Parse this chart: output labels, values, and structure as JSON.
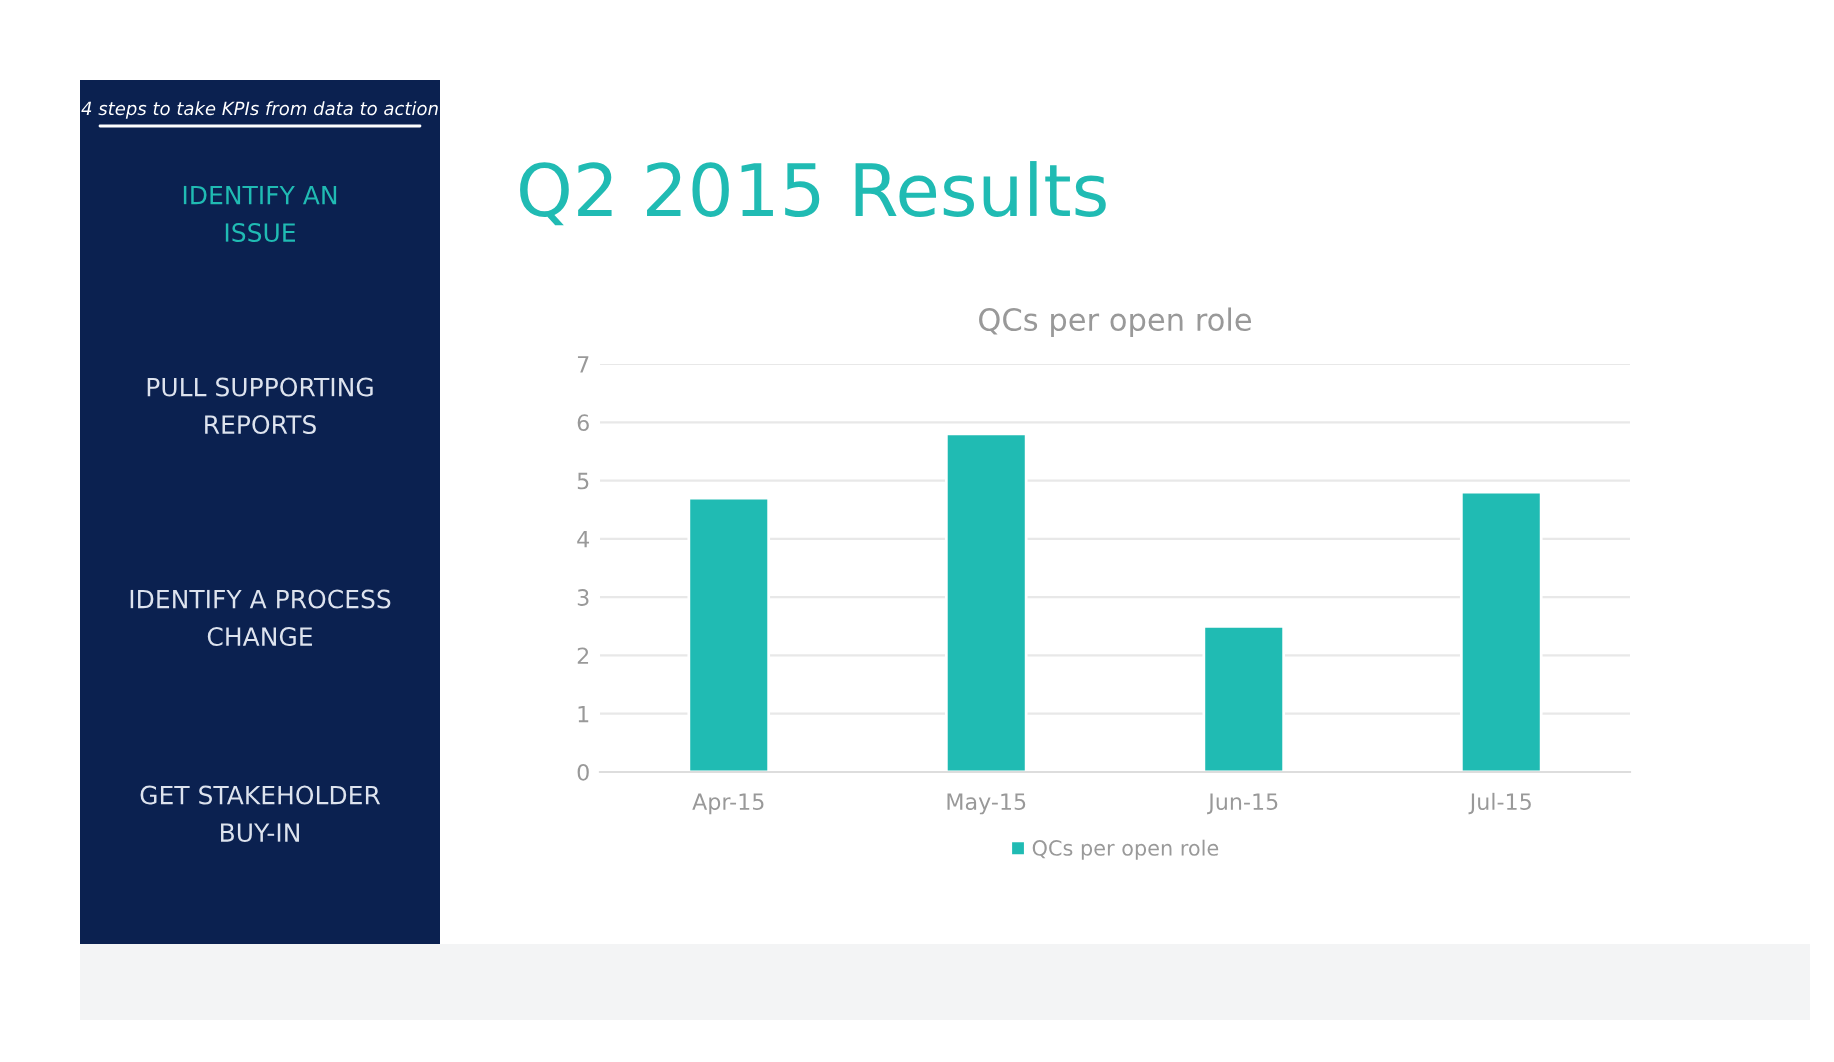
{
  "chart_data": {
    "type": "bar",
    "title": "Q2 2015 Results",
    "subtitle": "QCs per open role",
    "categories": [
      "Apr-15",
      "May-15",
      "Jun-15",
      "Jul-15"
    ],
    "series": [
      {
        "name": "QCs per open role",
        "color": "#20bbb3",
        "values": [
          4.7,
          5.8,
          2.5,
          4.8
        ]
      }
    ],
    "ylim": [
      0,
      7
    ],
    "yticks": [
      0,
      1,
      2,
      3,
      4,
      5,
      6,
      7
    ],
    "grid": "y",
    "legend": "bottom",
    "annotations": [
      "4 steps to take KPIs from data to action",
      "IDENTIFY AN\nISSUE",
      "PULL SUPPORTING\nREPORTS",
      "IDENTIFY A PROCESS\nCHANGE",
      "GET STAKEHOLDER\nBUY-IN"
    ]
  }
}
